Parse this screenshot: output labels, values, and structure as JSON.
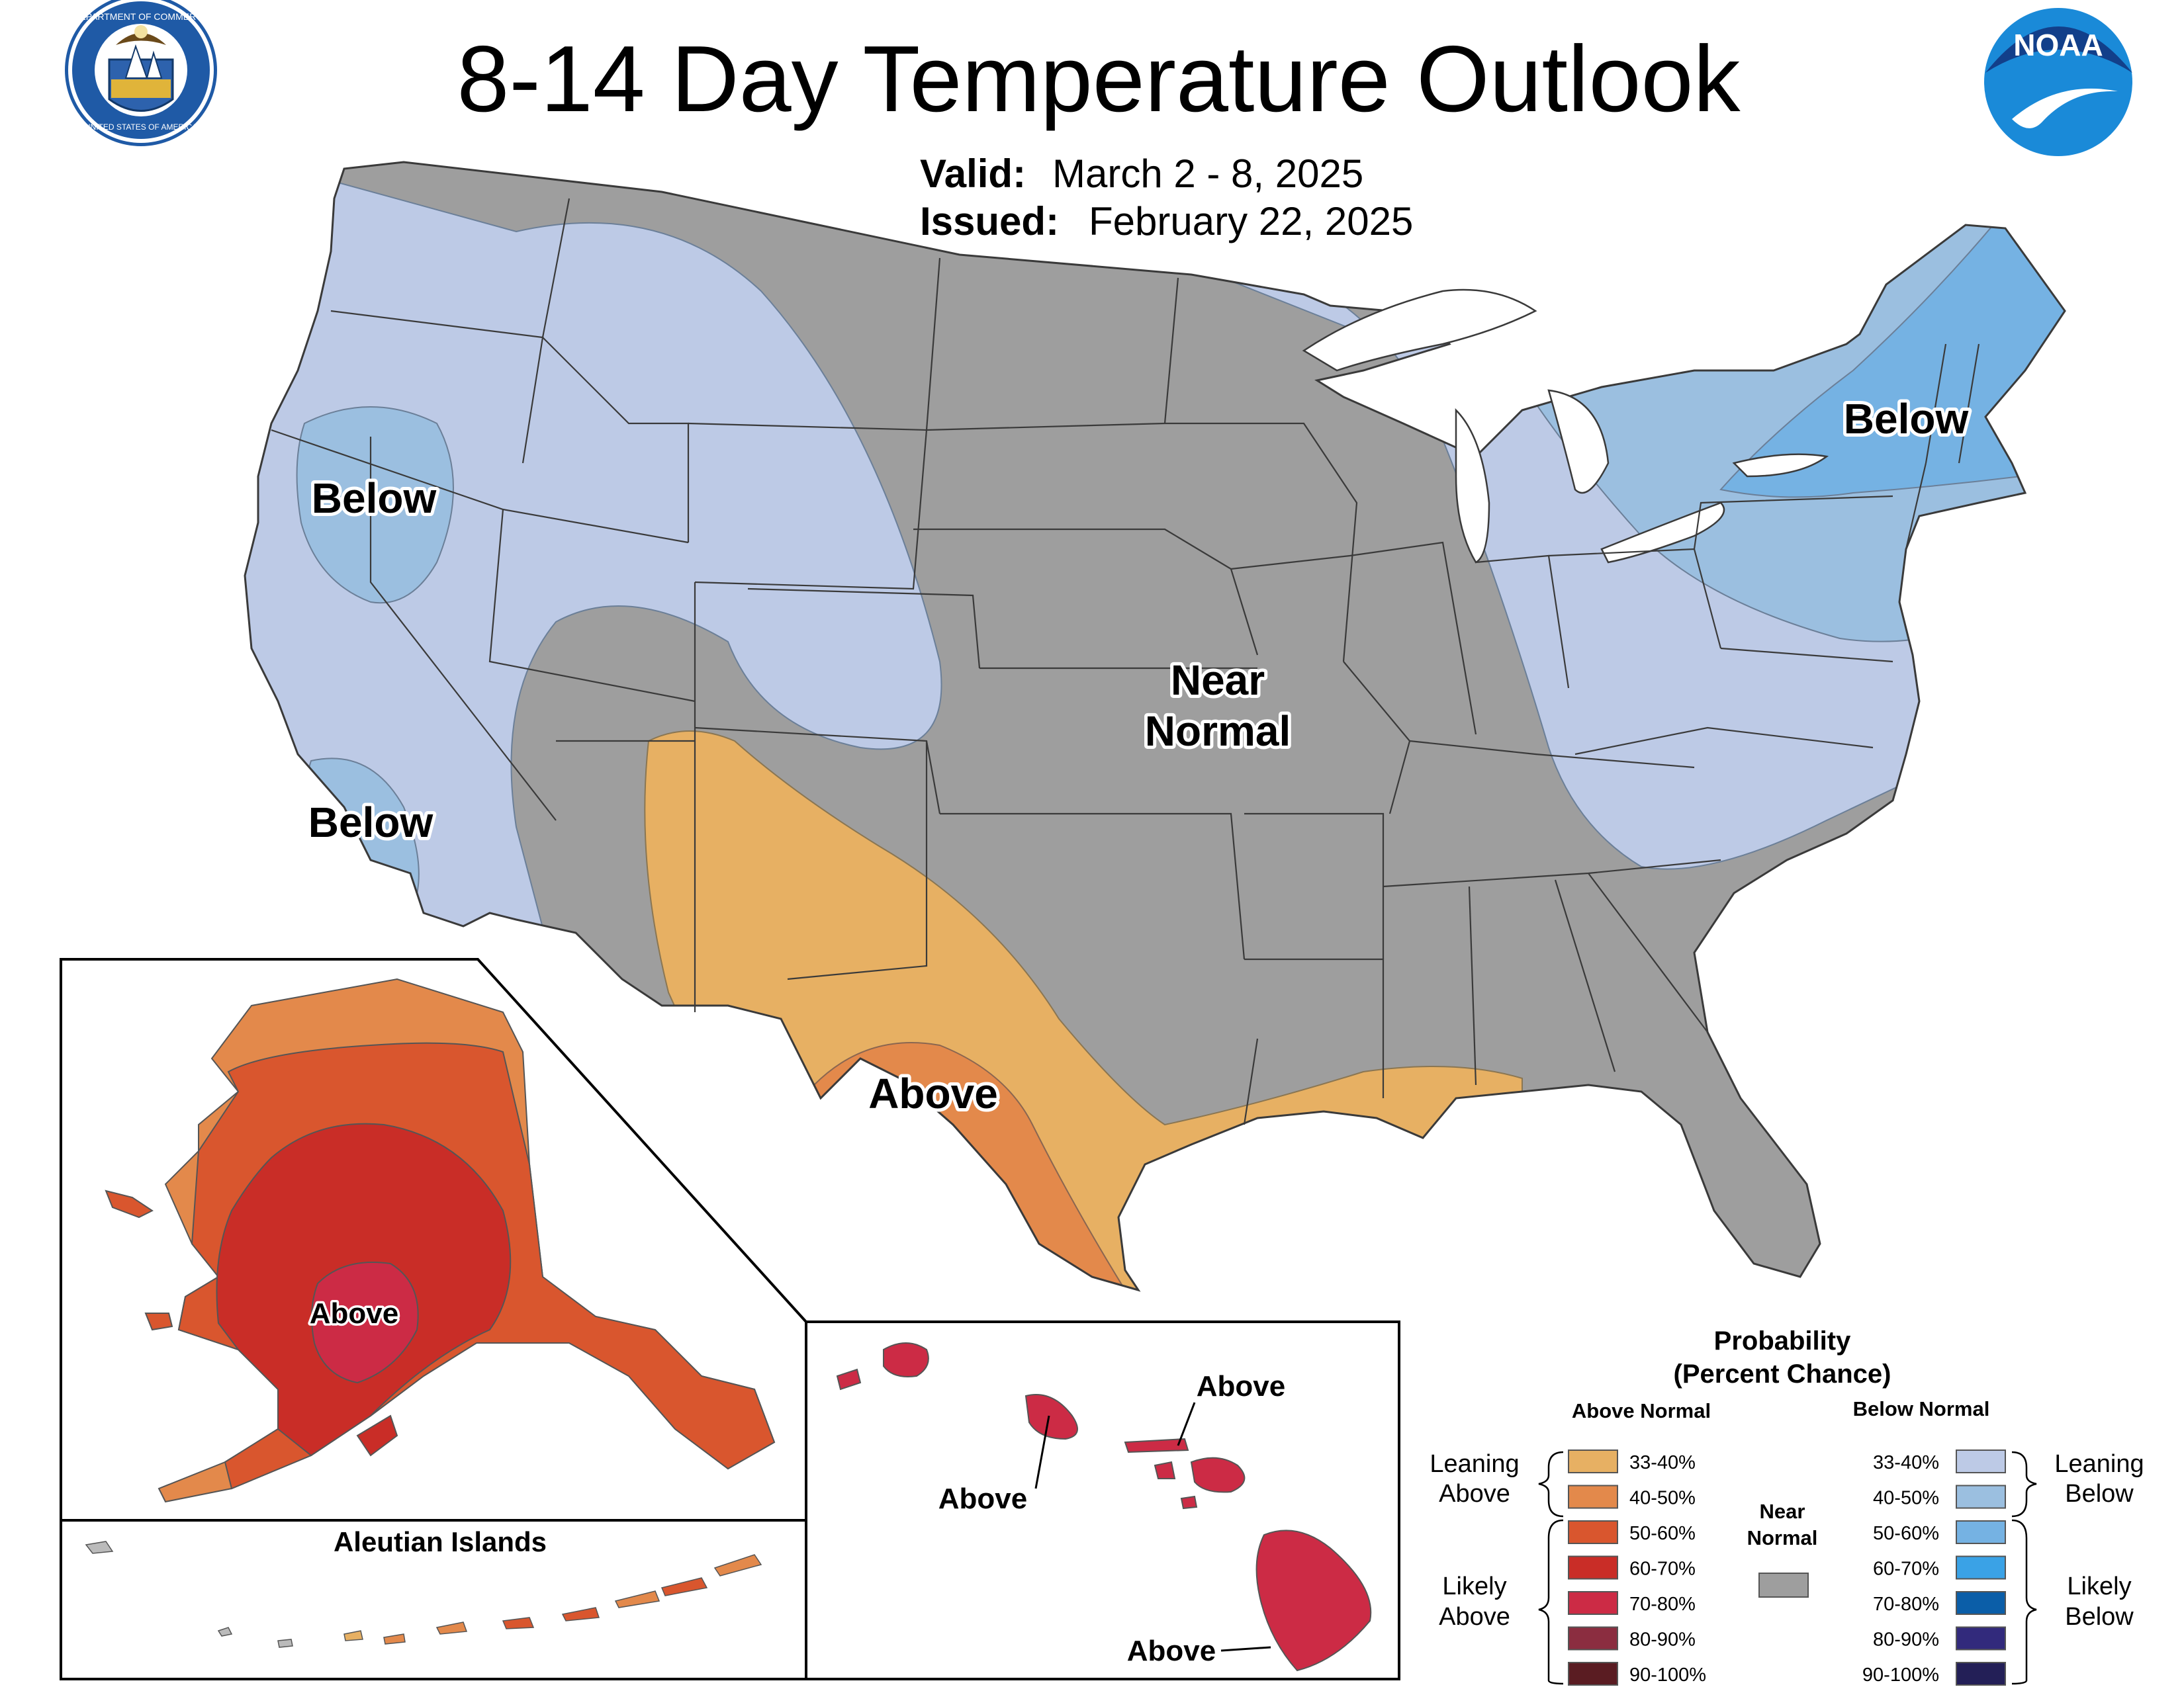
{
  "title": "8-14 Day Temperature Outlook",
  "valid": {
    "label": "Valid:",
    "value": "March 2 - 8, 2025"
  },
  "issued": {
    "label": "Issued:",
    "value": "February 22, 2025"
  },
  "logos": {
    "commerce_seal": {
      "icon": "department-of-commerce-seal",
      "text_top": "DEPARTMENT OF COMMERCE",
      "text_bottom": "UNITED STATES OF AMERICA"
    },
    "noaa": {
      "icon": "noaa-logo",
      "text": "NOAA"
    }
  },
  "colors": {
    "near_normal": "#9e9e9e",
    "below_33_40": "#bdcae6",
    "below_40_50": "#9bbfe0",
    "below_50_60": "#75b2e3",
    "below_60_70": "#3aa2e6",
    "below_70_80": "#0b5ea8",
    "below_80_90": "#322a7c",
    "below_90_100": "#231f57",
    "above_33_40": "#e7b063",
    "above_40_50": "#e3894b",
    "above_50_60": "#d9562e",
    "above_60_70": "#c92d27",
    "above_70_80": "#cc2b45",
    "above_80_90": "#8b2d40",
    "above_90_100": "#5a1c22"
  },
  "map_labels": {
    "below_nw": "Below",
    "below_sw": "Below",
    "below_ne": "Below",
    "near_normal_1": "Near",
    "near_normal_2": "Normal",
    "above_tx": "Above",
    "above_ak": "Above",
    "above_hi_kauai_oahu": "Above",
    "above_hi_maui": "Above",
    "above_hi_big": "Above",
    "aleutian": "Aleutian Islands"
  },
  "legend": {
    "title_1": "Probability",
    "title_2": "(Percent Chance)",
    "above_heading": "Above Normal",
    "below_heading": "Below Normal",
    "near_1": "Near",
    "near_2": "Normal",
    "leaning_above_1": "Leaning",
    "leaning_above_2": "Above",
    "likely_above_1": "Likely",
    "likely_above_2": "Above",
    "leaning_below_1": "Leaning",
    "leaning_below_2": "Below",
    "likely_below_1": "Likely",
    "likely_below_2": "Below",
    "above_items": [
      {
        "label": "33-40%",
        "color": "#e7b063"
      },
      {
        "label": "40-50%",
        "color": "#e3894b"
      },
      {
        "label": "50-60%",
        "color": "#d9562e"
      },
      {
        "label": "60-70%",
        "color": "#c92d27"
      },
      {
        "label": "70-80%",
        "color": "#cc2b45"
      },
      {
        "label": "80-90%",
        "color": "#8b2d40"
      },
      {
        "label": "90-100%",
        "color": "#5a1c22"
      }
    ],
    "below_items": [
      {
        "label": "33-40%",
        "color": "#bdcae6"
      },
      {
        "label": "40-50%",
        "color": "#9bbfe0"
      },
      {
        "label": "50-60%",
        "color": "#75b2e3"
      },
      {
        "label": "60-70%",
        "color": "#3aa2e6"
      },
      {
        "label": "70-80%",
        "color": "#0b5ea8"
      },
      {
        "label": "80-90%",
        "color": "#322a7c"
      },
      {
        "label": "90-100%",
        "color": "#231f57"
      }
    ]
  }
}
